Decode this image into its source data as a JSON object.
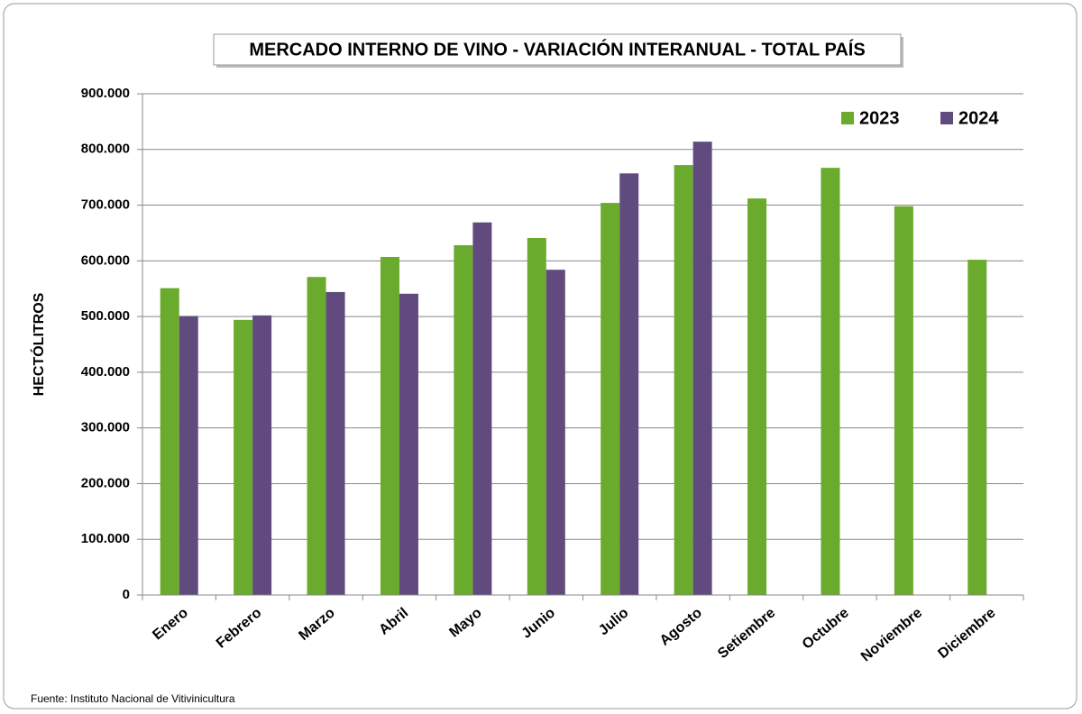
{
  "chart_data": {
    "type": "bar",
    "title": "MERCADO INTERNO DE VINO - VARIACIÓN INTERANUAL - TOTAL PAÍS",
    "y_label": "HECTÓLITROS",
    "source": "Fuente: Instituto Nacional de Vitivinicultura",
    "categories": [
      "Enero",
      "Febrero",
      "Marzo",
      "Abril",
      "Mayo",
      "Junio",
      "Julio",
      "Agosto",
      "Setiembre",
      "Octubre",
      "Noviembre",
      "Diciembre"
    ],
    "series": [
      {
        "name": "2023",
        "color": "#6aaa2d",
        "values": [
          551000,
          494000,
          571000,
          607000,
          628000,
          641000,
          704000,
          772000,
          712000,
          767000,
          698000,
          602000
        ]
      },
      {
        "name": "2024",
        "color": "#614b7e",
        "values": [
          501000,
          502000,
          544000,
          541000,
          669000,
          584000,
          757000,
          814000,
          null,
          null,
          null,
          null
        ]
      }
    ],
    "ylim": [
      0,
      900000
    ],
    "yticks": [
      0,
      {
        "value": 100000,
        "label": "100.000"
      },
      {
        "value": 200000,
        "label": "200.000"
      },
      {
        "value": 300000,
        "label": "300.000"
      },
      {
        "value": 400000,
        "label": "400.000"
      },
      {
        "value": 500000,
        "label": "500.000"
      },
      {
        "value": 600000,
        "label": "600.000"
      },
      {
        "value": 700000,
        "label": "700.000"
      },
      {
        "value": 800000,
        "label": "800.000"
      },
      {
        "value": 900000,
        "label": "900.000"
      }
    ],
    "grid": true,
    "legend": "top-right"
  }
}
